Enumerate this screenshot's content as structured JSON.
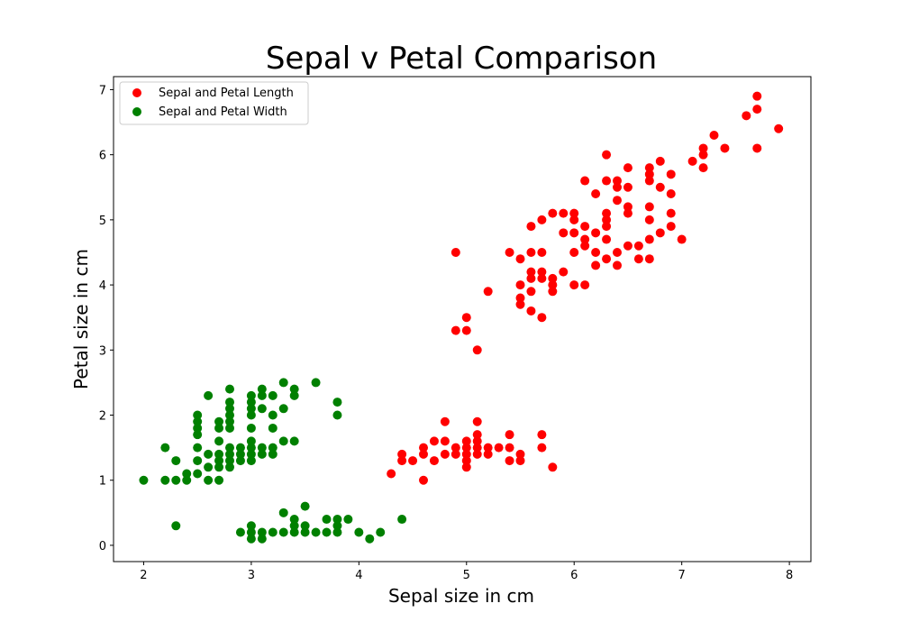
{
  "chart_data": {
    "type": "scatter",
    "title": "Sepal v Petal Comparison",
    "xlabel": "Sepal size in cm",
    "ylabel": "Petal size in cm",
    "xlim": [
      1.72,
      8.2
    ],
    "ylim": [
      -0.25,
      7.2
    ],
    "xticks": [
      "2",
      "3",
      "4",
      "5",
      "6",
      "7",
      "8"
    ],
    "yticks": [
      "0",
      "1",
      "2",
      "3",
      "4",
      "5",
      "6",
      "7"
    ],
    "grid": false,
    "legend_position": "top-left",
    "series": [
      {
        "name": "Sepal and Petal Length",
        "color": "#ff0000",
        "points": [
          [
            4.3,
            1.1
          ],
          [
            4.4,
            1.3
          ],
          [
            4.4,
            1.4
          ],
          [
            4.5,
            1.3
          ],
          [
            4.6,
            1.0
          ],
          [
            4.6,
            1.4
          ],
          [
            4.6,
            1.5
          ],
          [
            4.7,
            1.3
          ],
          [
            4.7,
            1.6
          ],
          [
            4.8,
            1.4
          ],
          [
            4.8,
            1.6
          ],
          [
            4.8,
            1.9
          ],
          [
            4.9,
            1.4
          ],
          [
            4.9,
            1.5
          ],
          [
            5.0,
            1.2
          ],
          [
            5.0,
            1.3
          ],
          [
            5.0,
            1.4
          ],
          [
            5.0,
            1.5
          ],
          [
            5.0,
            1.6
          ],
          [
            5.1,
            1.4
          ],
          [
            5.1,
            1.5
          ],
          [
            5.1,
            1.6
          ],
          [
            5.1,
            1.7
          ],
          [
            5.1,
            1.9
          ],
          [
            5.2,
            1.4
          ],
          [
            5.2,
            1.5
          ],
          [
            5.3,
            1.5
          ],
          [
            5.4,
            1.3
          ],
          [
            5.4,
            1.5
          ],
          [
            5.4,
            1.7
          ],
          [
            5.5,
            1.3
          ],
          [
            5.5,
            1.4
          ],
          [
            5.7,
            1.5
          ],
          [
            5.7,
            1.7
          ],
          [
            5.8,
            1.2
          ],
          [
            4.9,
            4.5
          ],
          [
            4.9,
            3.3
          ],
          [
            5.0,
            3.3
          ],
          [
            5.0,
            3.5
          ],
          [
            5.1,
            3.0
          ],
          [
            5.2,
            3.9
          ],
          [
            5.4,
            4.5
          ],
          [
            5.5,
            3.7
          ],
          [
            5.5,
            3.8
          ],
          [
            5.5,
            4.0
          ],
          [
            5.5,
            4.4
          ],
          [
            5.6,
            3.6
          ],
          [
            5.6,
            3.9
          ],
          [
            5.6,
            4.1
          ],
          [
            5.6,
            4.2
          ],
          [
            5.6,
            4.5
          ],
          [
            5.6,
            4.9
          ],
          [
            5.7,
            3.5
          ],
          [
            5.7,
            4.1
          ],
          [
            5.7,
            4.2
          ],
          [
            5.7,
            4.5
          ],
          [
            5.7,
            5.0
          ],
          [
            5.8,
            3.9
          ],
          [
            5.8,
            4.0
          ],
          [
            5.8,
            4.1
          ],
          [
            5.8,
            5.1
          ],
          [
            5.9,
            4.2
          ],
          [
            5.9,
            4.8
          ],
          [
            5.9,
            5.1
          ],
          [
            6.0,
            4.0
          ],
          [
            6.0,
            4.5
          ],
          [
            6.0,
            4.8
          ],
          [
            6.0,
            5.0
          ],
          [
            6.0,
            5.1
          ],
          [
            6.1,
            4.0
          ],
          [
            6.1,
            4.6
          ],
          [
            6.1,
            4.7
          ],
          [
            6.1,
            4.9
          ],
          [
            6.1,
            5.6
          ],
          [
            6.2,
            4.3
          ],
          [
            6.2,
            4.5
          ],
          [
            6.2,
            4.8
          ],
          [
            6.2,
            5.4
          ],
          [
            6.3,
            4.4
          ],
          [
            6.3,
            4.7
          ],
          [
            6.3,
            4.9
          ],
          [
            6.3,
            5.0
          ],
          [
            6.3,
            5.1
          ],
          [
            6.3,
            5.6
          ],
          [
            6.3,
            6.0
          ],
          [
            6.4,
            4.3
          ],
          [
            6.4,
            4.5
          ],
          [
            6.4,
            5.3
          ],
          [
            6.4,
            5.5
          ],
          [
            6.4,
            5.6
          ],
          [
            6.5,
            4.6
          ],
          [
            6.5,
            5.1
          ],
          [
            6.5,
            5.2
          ],
          [
            6.5,
            5.5
          ],
          [
            6.5,
            5.8
          ],
          [
            6.6,
            4.4
          ],
          [
            6.6,
            4.6
          ],
          [
            6.7,
            4.4
          ],
          [
            6.7,
            4.7
          ],
          [
            6.7,
            5.0
          ],
          [
            6.7,
            5.2
          ],
          [
            6.7,
            5.6
          ],
          [
            6.7,
            5.7
          ],
          [
            6.7,
            5.8
          ],
          [
            6.8,
            4.8
          ],
          [
            6.8,
            5.5
          ],
          [
            6.8,
            5.9
          ],
          [
            6.9,
            4.9
          ],
          [
            6.9,
            5.1
          ],
          [
            6.9,
            5.4
          ],
          [
            6.9,
            5.7
          ],
          [
            7.0,
            4.7
          ],
          [
            7.1,
            5.9
          ],
          [
            7.2,
            5.8
          ],
          [
            7.2,
            6.0
          ],
          [
            7.2,
            6.1
          ],
          [
            7.3,
            6.3
          ],
          [
            7.4,
            6.1
          ],
          [
            7.6,
            6.6
          ],
          [
            7.7,
            6.1
          ],
          [
            7.7,
            6.7
          ],
          [
            7.7,
            6.9
          ],
          [
            7.9,
            6.4
          ]
        ]
      },
      {
        "name": "Sepal and Petal Width",
        "color": "#008000",
        "points": [
          [
            2.3,
            0.3
          ],
          [
            2.9,
            0.2
          ],
          [
            3.0,
            0.1
          ],
          [
            3.0,
            0.2
          ],
          [
            3.0,
            0.3
          ],
          [
            3.1,
            0.1
          ],
          [
            3.1,
            0.2
          ],
          [
            3.2,
            0.2
          ],
          [
            3.3,
            0.2
          ],
          [
            3.3,
            0.5
          ],
          [
            3.4,
            0.2
          ],
          [
            3.4,
            0.3
          ],
          [
            3.4,
            0.4
          ],
          [
            3.5,
            0.2
          ],
          [
            3.5,
            0.3
          ],
          [
            3.5,
            0.6
          ],
          [
            3.6,
            0.2
          ],
          [
            3.7,
            0.2
          ],
          [
            3.7,
            0.4
          ],
          [
            3.8,
            0.2
          ],
          [
            3.8,
            0.3
          ],
          [
            3.8,
            0.4
          ],
          [
            3.9,
            0.4
          ],
          [
            4.0,
            0.2
          ],
          [
            4.1,
            0.1
          ],
          [
            4.2,
            0.2
          ],
          [
            4.4,
            0.4
          ],
          [
            2.0,
            1.0
          ],
          [
            2.2,
            1.0
          ],
          [
            2.2,
            1.5
          ],
          [
            2.3,
            1.0
          ],
          [
            2.3,
            1.3
          ],
          [
            2.4,
            1.0
          ],
          [
            2.4,
            1.1
          ],
          [
            2.5,
            1.1
          ],
          [
            2.5,
            1.3
          ],
          [
            2.5,
            1.5
          ],
          [
            2.6,
            1.0
          ],
          [
            2.6,
            1.2
          ],
          [
            2.6,
            1.4
          ],
          [
            2.6,
            2.3
          ],
          [
            2.7,
            1.0
          ],
          [
            2.7,
            1.2
          ],
          [
            2.7,
            1.3
          ],
          [
            2.7,
            1.4
          ],
          [
            2.7,
            1.6
          ],
          [
            2.8,
            1.2
          ],
          [
            2.8,
            1.3
          ],
          [
            2.8,
            1.4
          ],
          [
            2.8,
            1.5
          ],
          [
            2.9,
            1.3
          ],
          [
            2.9,
            1.4
          ],
          [
            2.9,
            1.5
          ],
          [
            3.0,
            1.3
          ],
          [
            3.0,
            1.4
          ],
          [
            3.0,
            1.5
          ],
          [
            3.0,
            1.6
          ],
          [
            3.0,
            1.8
          ],
          [
            3.1,
            1.4
          ],
          [
            3.1,
            1.5
          ],
          [
            3.2,
            1.4
          ],
          [
            3.2,
            1.5
          ],
          [
            3.2,
            1.8
          ],
          [
            3.3,
            1.6
          ],
          [
            3.4,
            1.6
          ],
          [
            2.5,
            1.7
          ],
          [
            2.5,
            1.8
          ],
          [
            2.5,
            1.9
          ],
          [
            2.5,
            2.0
          ],
          [
            2.7,
            1.8
          ],
          [
            2.7,
            1.9
          ],
          [
            2.8,
            1.8
          ],
          [
            2.8,
            1.9
          ],
          [
            2.8,
            2.0
          ],
          [
            2.8,
            2.1
          ],
          [
            2.8,
            2.2
          ],
          [
            2.8,
            2.4
          ],
          [
            3.0,
            2.0
          ],
          [
            3.0,
            2.1
          ],
          [
            3.0,
            2.2
          ],
          [
            3.0,
            2.3
          ],
          [
            3.1,
            2.1
          ],
          [
            3.1,
            2.3
          ],
          [
            3.1,
            2.4
          ],
          [
            3.2,
            2.0
          ],
          [
            3.2,
            2.3
          ],
          [
            3.3,
            2.1
          ],
          [
            3.3,
            2.5
          ],
          [
            3.4,
            2.3
          ],
          [
            3.4,
            2.4
          ],
          [
            3.6,
            2.5
          ],
          [
            3.8,
            2.0
          ],
          [
            3.8,
            2.2
          ]
        ]
      }
    ]
  }
}
